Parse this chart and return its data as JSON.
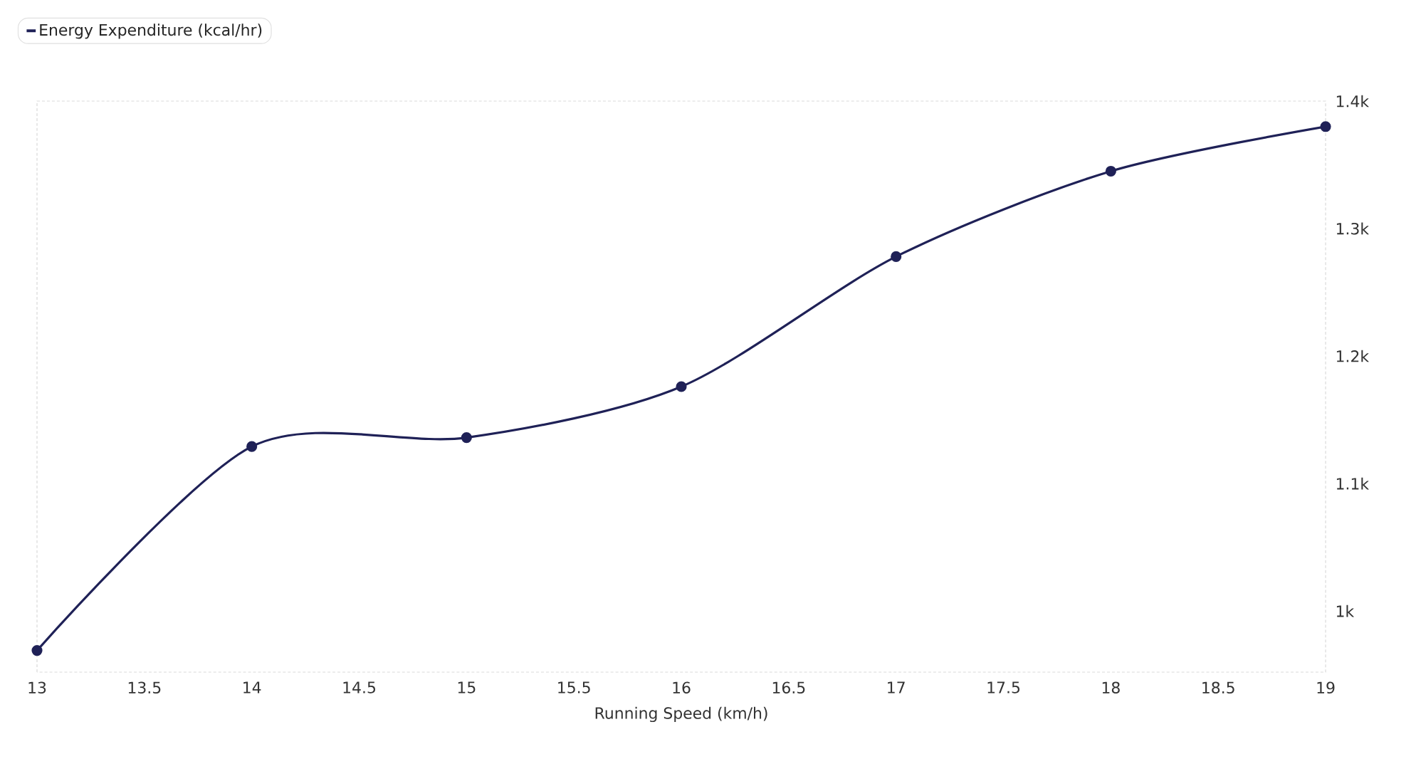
{
  "chart_data": {
    "type": "line",
    "xlabel": "Running Speed (km/h)",
    "x": [
      13,
      14,
      15,
      16,
      17,
      18,
      19
    ],
    "series": [
      {
        "name": "Energy Expenditure (kcal/hr)",
        "color": "#1f2157",
        "values": [
          969,
          1129,
          1136,
          1176,
          1278,
          1345,
          1380
        ]
      }
    ],
    "xlim": [
      13,
      19
    ],
    "xticks": [
      13,
      13.5,
      14,
      14.5,
      15,
      15.5,
      16,
      16.5,
      17,
      17.5,
      18,
      18.5,
      19
    ],
    "ylim": [
      952,
      1400
    ],
    "yticks": [
      {
        "value": 1000,
        "label": "1k"
      },
      {
        "value": 1100,
        "label": "1.1k"
      },
      {
        "value": 1200,
        "label": "1.2k"
      },
      {
        "value": 1300,
        "label": "1.3k"
      },
      {
        "value": 1400,
        "label": "1.4k"
      }
    ],
    "legend": "top left",
    "marker": "circle"
  }
}
